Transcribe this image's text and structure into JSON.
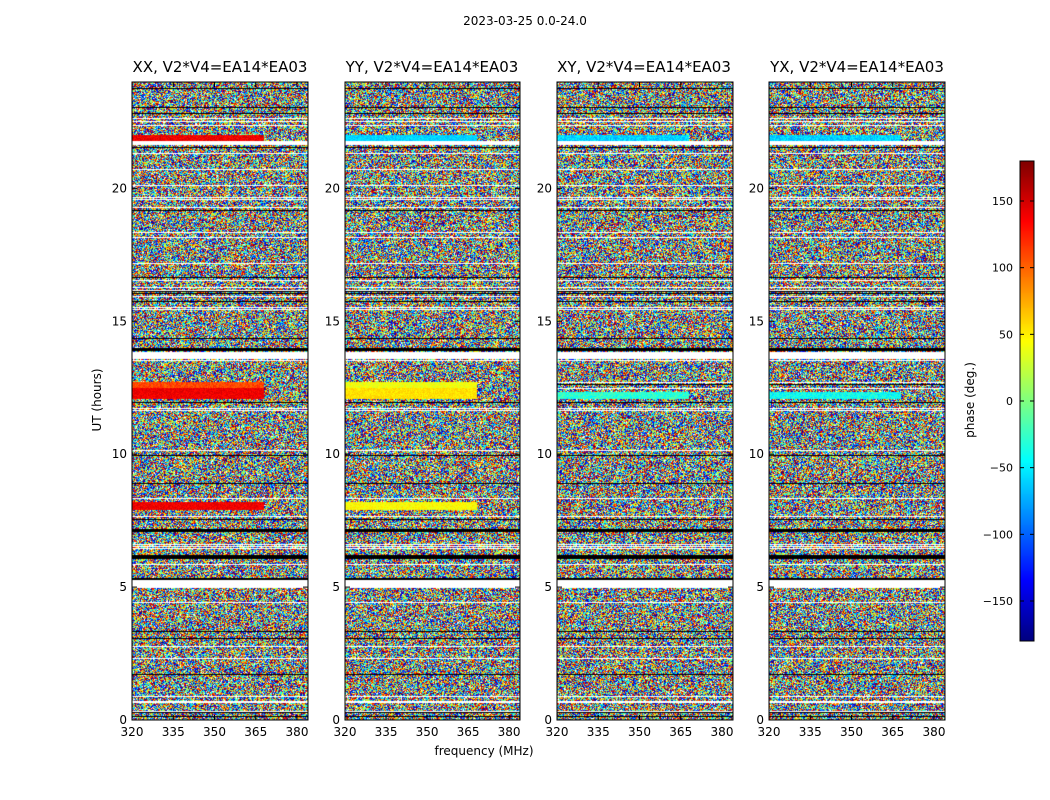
{
  "title": "2023-03-25 0.0-24.0",
  "xlabel": "frequency (MHz)",
  "ylabel": "UT (hours)",
  "colorbar_label": "phase (deg.)",
  "chart_data": {
    "type": "heatmap",
    "panels": [
      {
        "title": "XX, V2*V4=EA14*EA03",
        "polarization": "XX"
      },
      {
        "title": "YY, V2*V4=EA14*EA03",
        "polarization": "YY"
      },
      {
        "title": "XY, V2*V4=EA14*EA03",
        "polarization": "XY"
      },
      {
        "title": "YX, V2*V4=EA14*EA03",
        "polarization": "YX"
      }
    ],
    "x_ticks": [
      "320",
      "335",
      "350",
      "365",
      "380"
    ],
    "y_ticks": [
      "0",
      "5",
      "10",
      "15",
      "20"
    ],
    "xlim": [
      320,
      384
    ],
    "ylim": [
      0,
      24
    ],
    "colorbar_ticks": [
      "150",
      "100",
      "50",
      "0",
      "−50",
      "−100",
      "−150"
    ],
    "colorbar_range": [
      -180,
      180
    ],
    "colormap": "jet",
    "flagged_color": "#ffffff"
  }
}
